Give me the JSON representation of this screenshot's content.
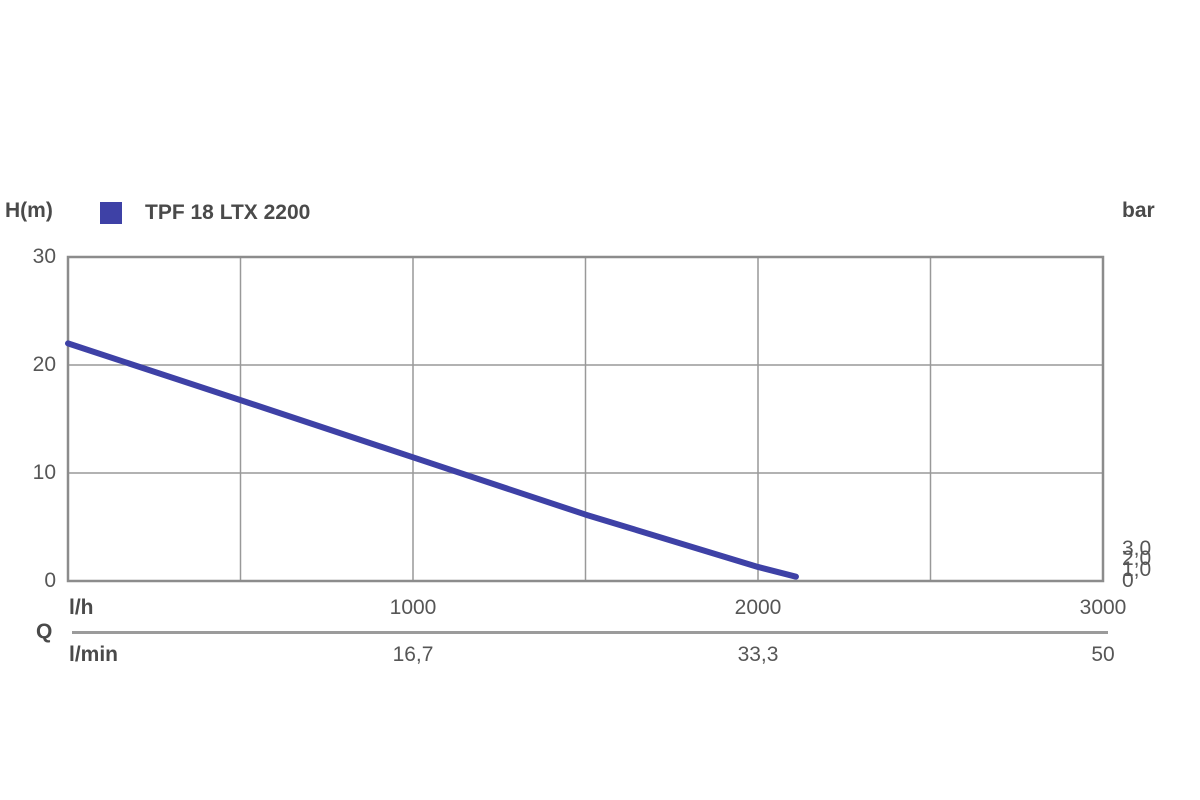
{
  "colors": {
    "curve": "#3e41a6",
    "legend_swatch": "#3e41a6",
    "gridline": "#999999",
    "plot_border": "#8c8c8c",
    "divider": "#9b9b9b",
    "label_text": "#4a4a4a",
    "tick_text": "#565656"
  },
  "chart_data": {
    "type": "line",
    "title": "",
    "legend_position": "top-left",
    "grid": true,
    "series": [
      {
        "name": "TPF 18 LTX 2200",
        "color": "#3e41a6",
        "points": [
          [
            0,
            22
          ],
          [
            500,
            16.75
          ],
          [
            1000,
            11.45
          ],
          [
            1500,
            6.15
          ],
          [
            2000,
            1.3
          ],
          [
            2110,
            0.4
          ]
        ]
      }
    ],
    "x_axis": {
      "label": "Q",
      "units": [
        "l/h",
        "l/min"
      ],
      "range_lh": [
        0,
        3000
      ],
      "gridline_step_lh": 500,
      "ticks": [
        {
          "value": 1000,
          "lh": "1000",
          "lmin": "16,7"
        },
        {
          "value": 2000,
          "lh": "2000",
          "lmin": "33,3"
        },
        {
          "value": 3000,
          "lh": "3000",
          "lmin": "50"
        }
      ]
    },
    "y_axis_left": {
      "label": "H(m)",
      "range": [
        0,
        30
      ],
      "ticks": [
        {
          "value": 30,
          "label": "30"
        },
        {
          "value": 20,
          "label": "20"
        },
        {
          "value": 10,
          "label": "10"
        },
        {
          "value": 0,
          "label": "0"
        }
      ]
    },
    "y_axis_right": {
      "label": "bar",
      "range": [
        0,
        3
      ],
      "ticks": [
        {
          "value": 3,
          "label": "3,0"
        },
        {
          "value": 2,
          "label": "2,0"
        },
        {
          "value": 1,
          "label": "1,0"
        },
        {
          "value": 0,
          "label": "0"
        }
      ]
    }
  }
}
